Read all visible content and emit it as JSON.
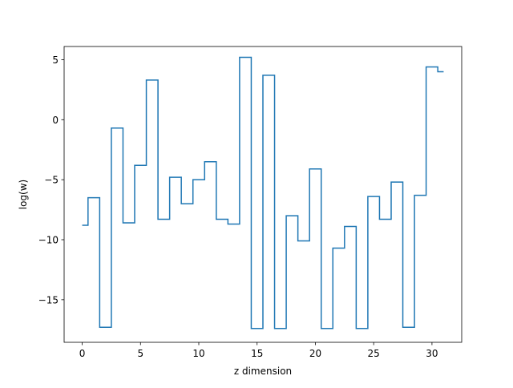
{
  "chart_data": {
    "type": "line",
    "drawstyle": "steps-mid",
    "xlabel": "z dimension",
    "ylabel": "log(w)",
    "xlim": [
      -1.55,
      32.55
    ],
    "ylim": [
      -18.55,
      6.1
    ],
    "xticks": [
      0,
      5,
      10,
      15,
      20,
      25,
      30
    ],
    "yticks": [
      -15,
      -10,
      -5,
      0,
      5
    ],
    "grid": false,
    "line_color": "#1f77b4",
    "x": [
      0,
      1,
      2,
      3,
      4,
      5,
      6,
      7,
      8,
      9,
      10,
      11,
      12,
      13,
      14,
      15,
      16,
      17,
      18,
      19,
      20,
      21,
      22,
      23,
      24,
      25,
      26,
      27,
      28,
      29,
      30,
      31
    ],
    "values": [
      -8.8,
      -6.5,
      -17.3,
      -0.7,
      -8.6,
      -3.8,
      3.3,
      -8.3,
      -4.8,
      -7.0,
      -5.0,
      -3.5,
      -8.3,
      -8.7,
      5.2,
      -17.4,
      3.7,
      -17.4,
      -8.0,
      -10.1,
      -4.1,
      -17.4,
      -10.7,
      -8.9,
      -17.4,
      -6.4,
      -8.3,
      -5.2,
      -17.3,
      -6.3,
      4.4,
      4.0
    ]
  }
}
